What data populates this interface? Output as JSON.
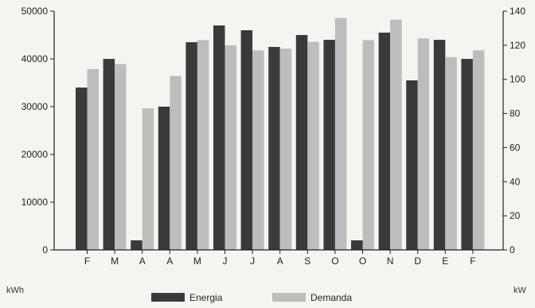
{
  "chart_data": {
    "type": "bar",
    "categories": [
      "F",
      "M",
      "A",
      "A",
      "M",
      "J",
      "J",
      "A",
      "S",
      "O",
      "O",
      "N",
      "D",
      "E",
      "F"
    ],
    "series": [
      {
        "name": "Energia",
        "axis": "left",
        "color": "#3a3a3a",
        "values": [
          34000,
          40000,
          2000,
          30000,
          43500,
          47000,
          46000,
          42500,
          45000,
          44000,
          2000,
          45500,
          35500,
          44000,
          40000
        ]
      },
      {
        "name": "Demanda",
        "axis": "right",
        "color": "#bdbdbd",
        "values": [
          106,
          109,
          83,
          102,
          123,
          120,
          117,
          118,
          122,
          136,
          123,
          135,
          124,
          113,
          117
        ]
      }
    ],
    "left_axis": {
      "ticks": [
        "50000",
        "40000",
        "30000",
        "20000",
        "10000",
        "0"
      ],
      "tick_values": [
        50000,
        40000,
        30000,
        20000,
        10000,
        0
      ],
      "ylim": [
        0,
        50000
      ],
      "unit": "kWh"
    },
    "right_axis": {
      "ticks": [
        "140",
        "120",
        "100",
        "80",
        "60",
        "40",
        "20",
        "0"
      ],
      "tick_values": [
        140,
        120,
        100,
        80,
        60,
        40,
        20,
        0
      ],
      "ylim": [
        0,
        140
      ],
      "unit": "kW"
    },
    "grid": false,
    "legend": {
      "placement": "bottom",
      "labels": [
        "Energia",
        "Demanda"
      ]
    }
  }
}
